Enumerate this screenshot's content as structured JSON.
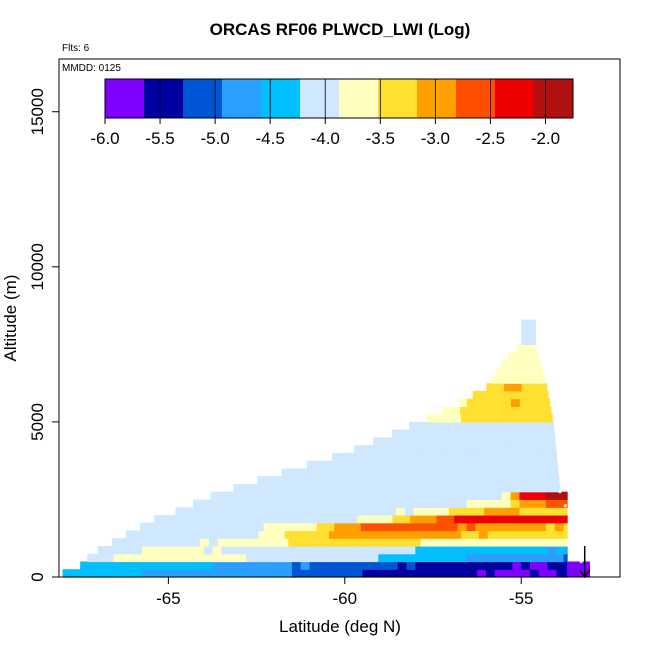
{
  "chart_data": {
    "type": "heatmap",
    "title": "ORCAS RF06 PLWCD_LWI (Log)",
    "xlabel": "Latitude (deg N)",
    "ylabel": "Altitude (m)",
    "xlim": [
      -68.1,
      -52.2
    ],
    "ylim": [
      0,
      16700
    ],
    "x_ticks": [
      -65,
      -60,
      -55
    ],
    "x_tick_labels": [
      "-65",
      "-60",
      "-55"
    ],
    "y_ticks": [
      0,
      5000,
      10000,
      15000
    ],
    "y_tick_labels": [
      "0",
      "5000",
      "10000",
      "15000"
    ],
    "annotations": {
      "flights": "Flts: 6",
      "date": "MMDD: 0125"
    },
    "colorbar": {
      "range": [
        -6.0,
        -1.75
      ],
      "ticks": [
        -6.0,
        -5.5,
        -5.0,
        -4.5,
        -4.0,
        -3.5,
        -3.0,
        -2.5,
        -2.0
      ],
      "tick_labels": [
        "-6.0",
        "-5.5",
        "-5.0",
        "-4.5",
        "-4.0",
        "-3.5",
        "-3.0",
        "-2.5",
        "-2.0"
      ],
      "colors": [
        "#7f00ff",
        "#0000a0",
        "#0055d4",
        "#2b9fff",
        "#00bfff",
        "#cfe8ff",
        "#ffffc0",
        "#ffe030",
        "#ffa000",
        "#ff5000",
        "#ee0000",
        "#b01010"
      ]
    },
    "cell_size": {
      "dx_deg": 0.25,
      "dy_m": 250
    },
    "bands": [
      {
        "y0": 0,
        "y1": 250,
        "x_start": -68.0,
        "x_end": -53.7,
        "profile": [
          [
            -68.0,
            -4.3
          ],
          [
            -66.5,
            -4.55
          ],
          [
            -64.5,
            -4.65
          ],
          [
            -62.0,
            -4.9
          ],
          [
            -60.0,
            -5.2
          ],
          [
            -58.0,
            -5.5
          ],
          [
            -56.0,
            -5.65
          ],
          [
            -54.5,
            -5.7
          ],
          [
            -53.7,
            -5.6
          ]
        ]
      },
      {
        "y0": 250,
        "y1": 500,
        "x_start": -67.5,
        "x_end": -53.7,
        "profile": [
          [
            -67.5,
            -4.3
          ],
          [
            -66.0,
            -4.4
          ],
          [
            -64.0,
            -4.55
          ],
          [
            -62.0,
            -4.8
          ],
          [
            -60.0,
            -5.1
          ],
          [
            -58.0,
            -5.35
          ],
          [
            -56.0,
            -5.5
          ],
          [
            -54.5,
            -5.7
          ],
          [
            -53.7,
            -5.5
          ]
        ]
      },
      {
        "y0": 500,
        "y1": 750,
        "x_start": -67.3,
        "x_end": -53.7,
        "profile": [
          [
            -67.3,
            -4.0
          ],
          [
            -65.0,
            -3.6
          ],
          [
            -63.0,
            -3.85
          ],
          [
            -60.0,
            -4.15
          ],
          [
            -58.0,
            -4.4
          ],
          [
            -56.0,
            -4.65
          ],
          [
            -54.0,
            -4.9
          ],
          [
            -53.7,
            -5.0
          ]
        ]
      },
      {
        "y0": 750,
        "y1": 1000,
        "x_start": -67.0,
        "x_end": -53.7,
        "profile": [
          [
            -67.0,
            -4.05
          ],
          [
            -65.0,
            -3.75
          ],
          [
            -63.0,
            -3.95
          ],
          [
            -61.0,
            -4.0
          ],
          [
            -59.0,
            -4.2
          ],
          [
            -57.0,
            -4.3
          ],
          [
            -55.0,
            -4.45
          ],
          [
            -53.7,
            -4.6
          ]
        ]
      },
      {
        "y0": 1000,
        "y1": 1250,
        "x_start": -66.6,
        "x_end": -53.7,
        "profile": [
          [
            -66.6,
            -4.05
          ],
          [
            -64.0,
            -3.9
          ],
          [
            -62.0,
            -3.55
          ],
          [
            -60.5,
            -3.3
          ],
          [
            -59.0,
            -3.45
          ],
          [
            -57.0,
            -3.65
          ],
          [
            -55.0,
            -3.75
          ],
          [
            -53.7,
            -3.85
          ]
        ]
      },
      {
        "y0": 1250,
        "y1": 1500,
        "x_start": -66.2,
        "x_end": -53.7,
        "profile": [
          [
            -66.2,
            -4.1
          ],
          [
            -63.0,
            -4.0
          ],
          [
            -61.5,
            -3.5
          ],
          [
            -60.0,
            -3.1
          ],
          [
            -58.5,
            -2.95
          ],
          [
            -57.0,
            -3.1
          ],
          [
            -55.0,
            -3.35
          ],
          [
            -53.7,
            -3.5
          ]
        ]
      },
      {
        "y0": 1500,
        "y1": 1750,
        "x_start": -65.8,
        "x_end": -53.7,
        "profile": [
          [
            -65.8,
            -4.1
          ],
          [
            -63.0,
            -4.05
          ],
          [
            -61.0,
            -3.6
          ],
          [
            -59.5,
            -2.8
          ],
          [
            -58.0,
            -2.6
          ],
          [
            -56.5,
            -2.8
          ],
          [
            -55.0,
            -3.05
          ],
          [
            -53.7,
            -3.2
          ]
        ]
      },
      {
        "y0": 1750,
        "y1": 2000,
        "x_start": -65.4,
        "x_end": -53.7,
        "profile": [
          [
            -65.4,
            -4.1
          ],
          [
            -62.0,
            -4.05
          ],
          [
            -59.5,
            -3.9
          ],
          [
            -58.0,
            -3.2
          ],
          [
            -56.5,
            -2.3
          ],
          [
            -55.0,
            -2.25
          ],
          [
            -53.7,
            -2.4
          ]
        ]
      },
      {
        "y0": 2000,
        "y1": 2250,
        "x_start": -64.8,
        "x_end": -53.7,
        "profile": [
          [
            -64.8,
            -4.1
          ],
          [
            -60.0,
            -4.1
          ],
          [
            -57.5,
            -3.8
          ],
          [
            -56.0,
            -3.15
          ],
          [
            -55.0,
            -3.2
          ],
          [
            -53.7,
            -3.35
          ]
        ]
      },
      {
        "y0": 2250,
        "y1": 2500,
        "x_start": -64.3,
        "x_end": -53.7,
        "profile": [
          [
            -64.3,
            -4.1
          ],
          [
            -60.0,
            -4.1
          ],
          [
            -57.0,
            -4.0
          ],
          [
            -55.5,
            -3.6
          ],
          [
            -55.0,
            -3.2
          ],
          [
            -54.2,
            -2.75
          ],
          [
            -53.7,
            -2.5
          ]
        ]
      },
      {
        "y0": 2500,
        "y1": 2750,
        "x_start": -63.8,
        "x_end": -53.7,
        "profile": [
          [
            -63.8,
            -4.1
          ],
          [
            -58.0,
            -4.1
          ],
          [
            -55.5,
            -4.0
          ],
          [
            -55.0,
            -2.5
          ],
          [
            -54.2,
            -2.05
          ],
          [
            -53.7,
            -1.95
          ]
        ]
      },
      {
        "y0": 2750,
        "y1": 5000,
        "x_start": -63.5,
        "x_end": -53.9,
        "profile": [
          [
            -63.5,
            -4.15
          ],
          [
            -60.0,
            -4.1
          ],
          [
            -57.0,
            -4.05
          ],
          [
            -55.0,
            -4.05
          ],
          [
            -53.9,
            -4.15
          ]
        ]
      },
      {
        "y0": 5000,
        "y1": 6250,
        "x_start": -58.5,
        "x_end": -54.1,
        "profile": [
          [
            -58.5,
            -3.9
          ],
          [
            -57.0,
            -3.6
          ],
          [
            -56.0,
            -3.3
          ],
          [
            -55.0,
            -3.15
          ],
          [
            -54.1,
            -3.4
          ]
        ]
      },
      {
        "y0": 6250,
        "y1": 7500,
        "x_start": -56.5,
        "x_end": -54.3,
        "profile": [
          [
            -56.5,
            -3.9
          ],
          [
            -55.5,
            -3.7
          ],
          [
            -54.8,
            -3.6
          ],
          [
            -54.3,
            -3.75
          ]
        ]
      },
      {
        "y0": 7500,
        "y1": 8300,
        "x_start": -55.0,
        "x_end": -54.6,
        "profile": [
          [
            -55.0,
            -4.05
          ],
          [
            -54.6,
            -4.1
          ]
        ]
      }
    ],
    "outline": {
      "left_edge": [
        [
          -68.0,
          0
        ],
        [
          -67.5,
          250
        ],
        [
          -67.3,
          500
        ],
        [
          -67.0,
          750
        ],
        [
          -66.6,
          1000
        ],
        [
          -66.2,
          1250
        ],
        [
          -65.8,
          1500
        ],
        [
          -65.4,
          1750
        ],
        [
          -64.8,
          2000
        ],
        [
          -64.3,
          2250
        ],
        [
          -63.8,
          2500
        ],
        [
          -63.5,
          2750
        ],
        [
          -62.0,
          3300
        ],
        [
          -60.0,
          4000
        ],
        [
          -58.5,
          4700
        ],
        [
          -57.0,
          5500
        ],
        [
          -56.0,
          6100
        ],
        [
          -55.5,
          7000
        ],
        [
          -55.0,
          7500
        ],
        [
          -55.0,
          8300
        ]
      ],
      "right_edge": [
        [
          -54.6,
          8300
        ],
        [
          -54.6,
          7500
        ],
        [
          -54.3,
          6250
        ],
        [
          -54.1,
          5000
        ],
        [
          -53.9,
          2750
        ],
        [
          -53.7,
          2000
        ],
        [
          -53.6,
          1500
        ],
        [
          -53.4,
          500
        ],
        [
          -53.2,
          0
        ]
      ]
    },
    "flight_track_arrow": {
      "x": -53.2,
      "y_from": 1000,
      "y_to": 0
    },
    "flight_track_points": [
      [
        -53.9,
        2750
      ],
      [
        -53.75,
        2300
      ],
      [
        -53.6,
        1800
      ],
      [
        -53.5,
        1300
      ],
      [
        -53.4,
        900
      ],
      [
        -53.3,
        500
      ]
    ],
    "low_level_extension": {
      "x0": -53.7,
      "x1": -53.05,
      "y0": 0,
      "y1": 500,
      "value": -5.7
    }
  }
}
